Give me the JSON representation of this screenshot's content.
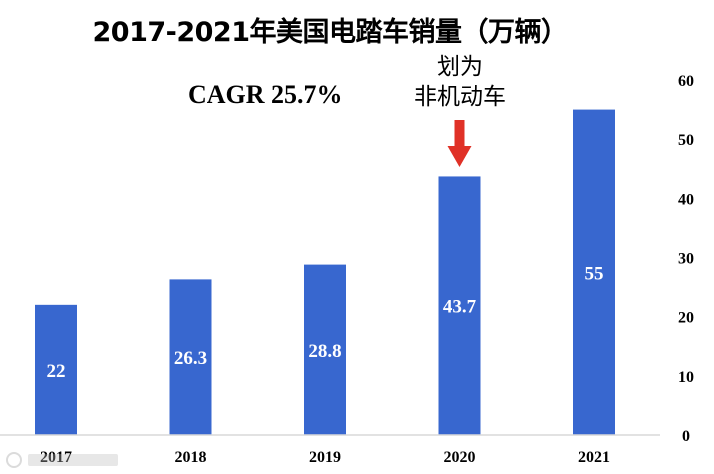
{
  "chart_data": {
    "type": "bar",
    "title": "2017-2021年美国电踏车销量（万辆）",
    "annotation_cagr": "CAGR  25.7%",
    "annotation_note": [
      "划为",
      "非机动车"
    ],
    "categories": [
      "2017",
      "2018",
      "2019",
      "2020",
      "2021"
    ],
    "values": [
      22,
      26.3,
      28.8,
      43.7,
      55
    ],
    "data_labels": [
      "22",
      "26.3",
      "28.8",
      "43.7",
      "55"
    ],
    "y_ticks": [
      "0",
      "10",
      "20",
      "30",
      "40",
      "50",
      "60"
    ],
    "ylim": [
      0,
      60
    ],
    "y_axis_side": "right",
    "bar_color": "#3867CF",
    "arrow_color": "#E03127",
    "grid": false,
    "legend": "none"
  }
}
